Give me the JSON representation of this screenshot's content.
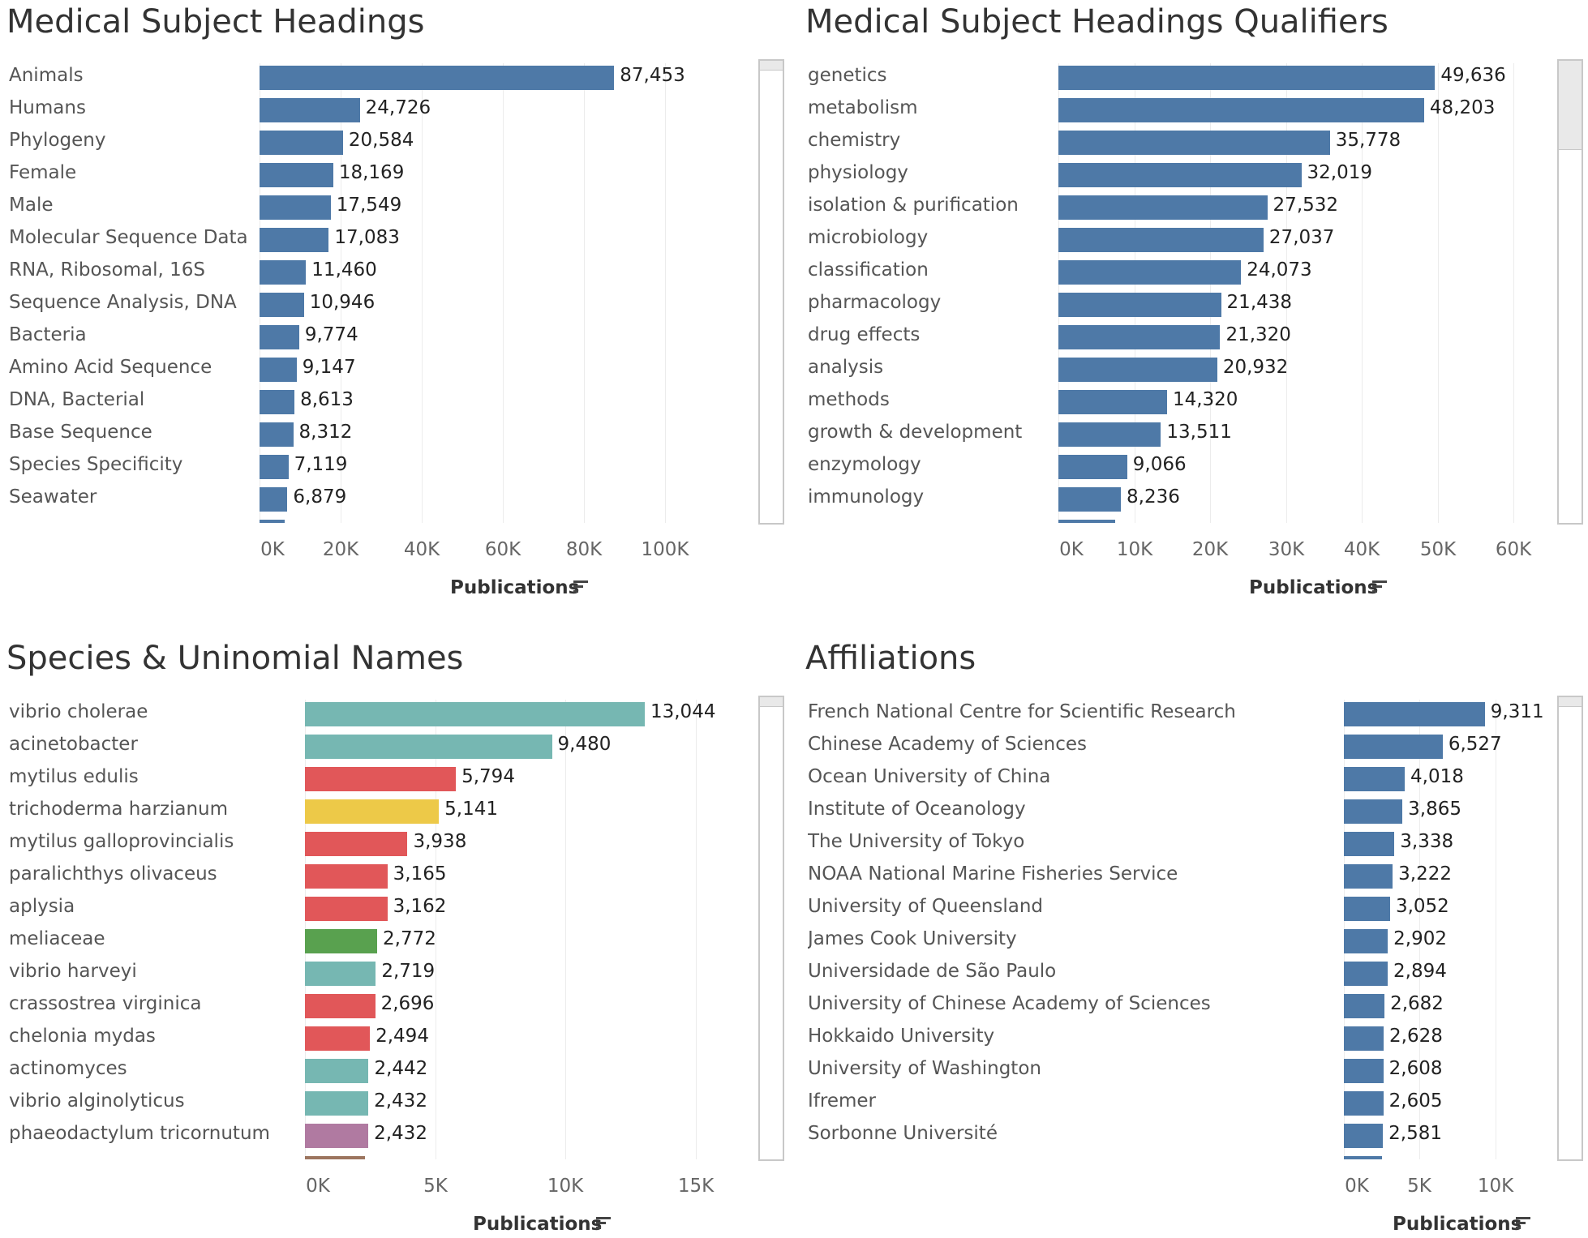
{
  "chart_data": [
    {
      "id": "mesh",
      "type": "bar",
      "orientation": "horizontal",
      "title": "Medical Subject Headings",
      "xlabel": "Publications",
      "xlim": [
        0,
        110000
      ],
      "xticks": [
        0,
        20000,
        40000,
        60000,
        80000,
        100000
      ],
      "xtick_labels": [
        "0K",
        "20K",
        "40K",
        "60K",
        "80K",
        "100K"
      ],
      "grid": true,
      "scrollbar_thumb": [
        0,
        0.02
      ],
      "categories": [
        "Animals",
        "Humans",
        "Phylogeny",
        "Female",
        "Male",
        "Molecular Sequence Data",
        "RNA, Ribosomal, 16S",
        "Sequence Analysis, DNA",
        "Bacteria",
        "Amino Acid Sequence",
        "DNA, Bacterial",
        "Base Sequence",
        "Species Specificity",
        "Seawater"
      ],
      "values": [
        87453,
        24726,
        20584,
        18169,
        17549,
        17083,
        11460,
        10946,
        9774,
        9147,
        8613,
        8312,
        7119,
        6879
      ],
      "value_labels": [
        "87,453",
        "24,726",
        "20,584",
        "18,169",
        "17,549",
        "17,083",
        "11,460",
        "10,946",
        "9,774",
        "9,147",
        "8,613",
        "8,312",
        "7,119",
        "6,879"
      ],
      "partial_next_value": 6200,
      "colors": [
        "#4e79a7"
      ]
    },
    {
      "id": "qualifiers",
      "type": "bar",
      "orientation": "horizontal",
      "title": "Medical Subject Headings Qualifiers",
      "xlabel": "Publications",
      "xlim": [
        0,
        62000
      ],
      "xticks": [
        0,
        10000,
        20000,
        30000,
        40000,
        50000,
        60000
      ],
      "xtick_labels": [
        "0K",
        "10K",
        "20K",
        "30K",
        "40K",
        "50K",
        "60K"
      ],
      "grid": true,
      "scrollbar_thumb": [
        0,
        0.19
      ],
      "categories": [
        "genetics",
        "metabolism",
        "chemistry",
        "physiology",
        "isolation & purification",
        "microbiology",
        "classification",
        "pharmacology",
        "drug effects",
        "analysis",
        "methods",
        "growth & development",
        "enzymology",
        "immunology"
      ],
      "values": [
        49636,
        48203,
        35778,
        32019,
        27532,
        27037,
        24073,
        21438,
        21320,
        20932,
        14320,
        13511,
        9066,
        8236
      ],
      "value_labels": [
        "49,636",
        "48,203",
        "35,778",
        "32,019",
        "27,532",
        "27,037",
        "24,073",
        "21,438",
        "21,320",
        "20,932",
        "14,320",
        "13,511",
        "9,066",
        "8,236"
      ],
      "partial_next_value": 7500,
      "colors": [
        "#4e79a7"
      ]
    },
    {
      "id": "species",
      "type": "bar",
      "orientation": "horizontal",
      "title": "Species & Uninomial Names",
      "xlabel": "Publications",
      "xlim": [
        0,
        16500
      ],
      "xticks": [
        0,
        5000,
        10000,
        15000
      ],
      "xtick_labels": [
        "0K",
        "5K",
        "10K",
        "15K"
      ],
      "grid": true,
      "scrollbar_thumb": [
        0,
        0.02
      ],
      "categories": [
        "vibrio cholerae",
        "acinetobacter",
        "mytilus edulis",
        "trichoderma harzianum",
        "mytilus galloprovincialis",
        "paralichthys olivaceus",
        "aplysia",
        "meliaceae",
        "vibrio harveyi",
        "crassostrea virginica",
        "chelonia mydas",
        "actinomyces",
        "vibrio alginolyticus",
        "phaeodactylum tricornutum"
      ],
      "values": [
        13044,
        9480,
        5794,
        5141,
        3938,
        3165,
        3162,
        2772,
        2719,
        2696,
        2494,
        2442,
        2432,
        2432
      ],
      "value_labels": [
        "13,044",
        "9,480",
        "5,794",
        "5,141",
        "3,938",
        "3,165",
        "3,162",
        "2,772",
        "2,719",
        "2,696",
        "2,494",
        "2,442",
        "2,432",
        "2,432"
      ],
      "partial_next_value": 2300,
      "bar_colors": [
        "#76b7b2",
        "#76b7b2",
        "#e15759",
        "#edc948",
        "#e15759",
        "#e15759",
        "#e15759",
        "#59a14f",
        "#76b7b2",
        "#e15759",
        "#e15759",
        "#76b7b2",
        "#76b7b2",
        "#b07aa1"
      ],
      "partial_next_color": "#9c755f"
    },
    {
      "id": "affiliations",
      "type": "bar",
      "orientation": "horizontal",
      "title": "Affiliations",
      "xlabel": "Publications",
      "xlim": [
        0,
        13500
      ],
      "xticks": [
        0,
        5000,
        10000
      ],
      "xtick_labels": [
        "0K",
        "5K",
        "10K"
      ],
      "grid": true,
      "scrollbar_thumb": [
        0,
        0.02
      ],
      "categories": [
        "French National Centre for Scientific Research",
        "Chinese Academy of Sciences",
        "Ocean University of China",
        "Institute of Oceanology",
        "The University of Tokyo",
        "NOAA National Marine Fisheries Service",
        "University of Queensland",
        "James Cook University",
        "Universidade de São Paulo",
        "University of Chinese Academy of Sciences",
        "Hokkaido University",
        "University of Washington",
        "Ifremer",
        "Sorbonne Université"
      ],
      "values": [
        9311,
        6527,
        4018,
        3865,
        3338,
        3222,
        3052,
        2902,
        2894,
        2682,
        2628,
        2608,
        2605,
        2581
      ],
      "value_labels": [
        "9,311",
        "6,527",
        "4,018",
        "3,865",
        "3,338",
        "3,222",
        "3,052",
        "2,902",
        "2,894",
        "2,682",
        "2,628",
        "2,608",
        "2,605",
        "2,581"
      ],
      "partial_next_value": 2500,
      "colors": [
        "#4e79a7"
      ]
    }
  ]
}
